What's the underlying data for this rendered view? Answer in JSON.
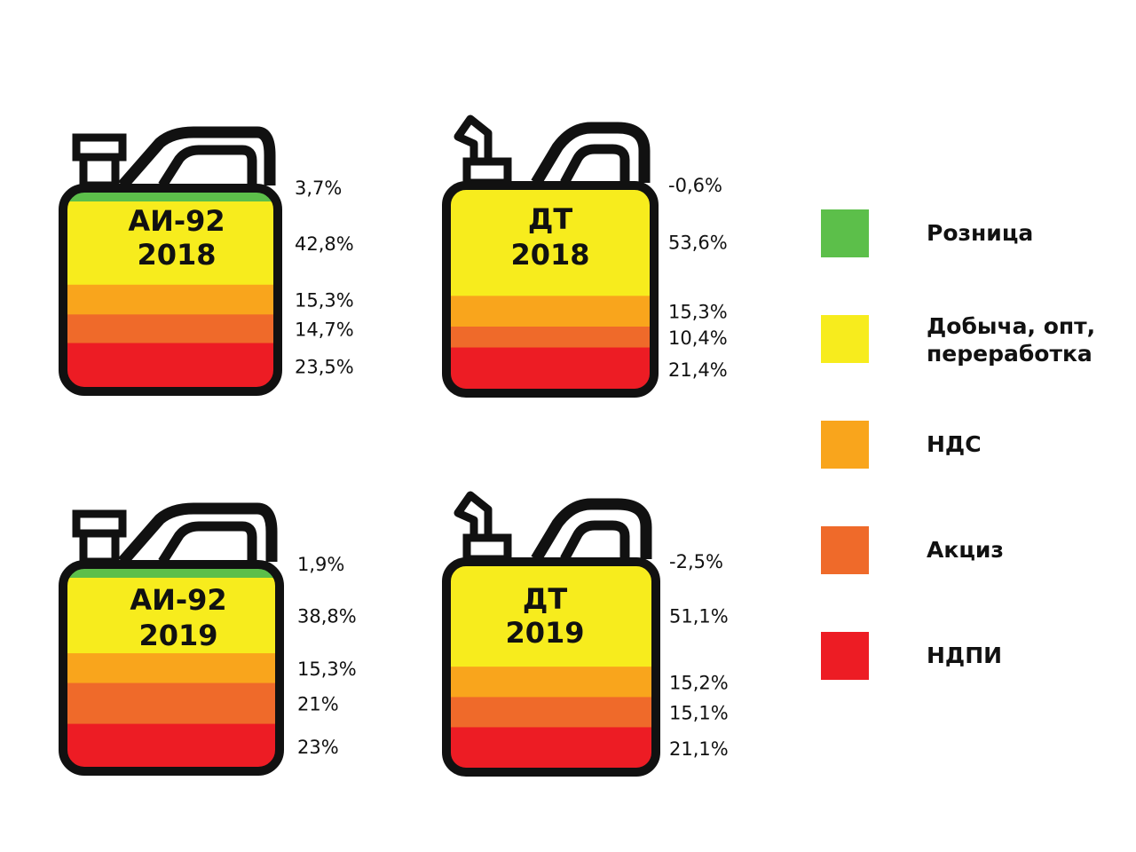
{
  "colors": {
    "retail": "#5cbf4a",
    "production": "#f7ec1d",
    "vat": "#f9a51c",
    "excise": "#ef6a2a",
    "ndpi": "#ed1c24",
    "outline": "#111111"
  },
  "legend": [
    {
      "key": "retail",
      "label": "Розница",
      "label2": ""
    },
    {
      "key": "production",
      "label": "Добыча, опт,",
      "label2": "переработка"
    },
    {
      "key": "vat",
      "label": "НДС",
      "label2": ""
    },
    {
      "key": "excise",
      "label": "Акциз",
      "label2": ""
    },
    {
      "key": "ndpi",
      "label": "НДПИ",
      "label2": ""
    }
  ],
  "chart_data": [
    {
      "type": "bar",
      "canister": "petrol",
      "title": [
        "АИ-92",
        "2018"
      ],
      "categories": [
        "Розница",
        "Добыча, опт, переработка",
        "НДС",
        "Акциз",
        "НДПИ"
      ],
      "values": [
        3.7,
        42.8,
        15.3,
        14.7,
        23.5
      ],
      "labels": [
        "3,7%",
        "42,8%",
        "15,3%",
        "14,7%",
        "23,5%"
      ]
    },
    {
      "type": "bar",
      "canister": "diesel",
      "title": [
        "ДТ",
        "2018"
      ],
      "categories": [
        "Розница",
        "Добыча, опт, переработка",
        "НДС",
        "Акциз",
        "НДПИ"
      ],
      "values": [
        -0.6,
        53.6,
        15.3,
        10.4,
        21.4
      ],
      "labels": [
        "-0,6%",
        "53,6%",
        "15,3%",
        "10,4%",
        "21,4%"
      ]
    },
    {
      "type": "bar",
      "canister": "petrol",
      "title": [
        "АИ-92",
        "2019"
      ],
      "categories": [
        "Розница",
        "Добыча, опт, переработка",
        "НДС",
        "Акциз",
        "НДПИ"
      ],
      "values": [
        1.9,
        38.8,
        15.3,
        21,
        23
      ],
      "labels": [
        "1,9%",
        "38,8%",
        "15,3%",
        "21%",
        "23%"
      ]
    },
    {
      "type": "bar",
      "canister": "diesel",
      "title": [
        "ДТ",
        "2019"
      ],
      "categories": [
        "Розница",
        "Добыча, опт, переработка",
        "НДС",
        "Акциз",
        "НДПИ"
      ],
      "values": [
        -2.5,
        51.1,
        15.2,
        15.1,
        21.1
      ],
      "labels": [
        "-2,5%",
        "51,1%",
        "15,2%",
        "15,1%",
        "21,1%"
      ]
    }
  ]
}
